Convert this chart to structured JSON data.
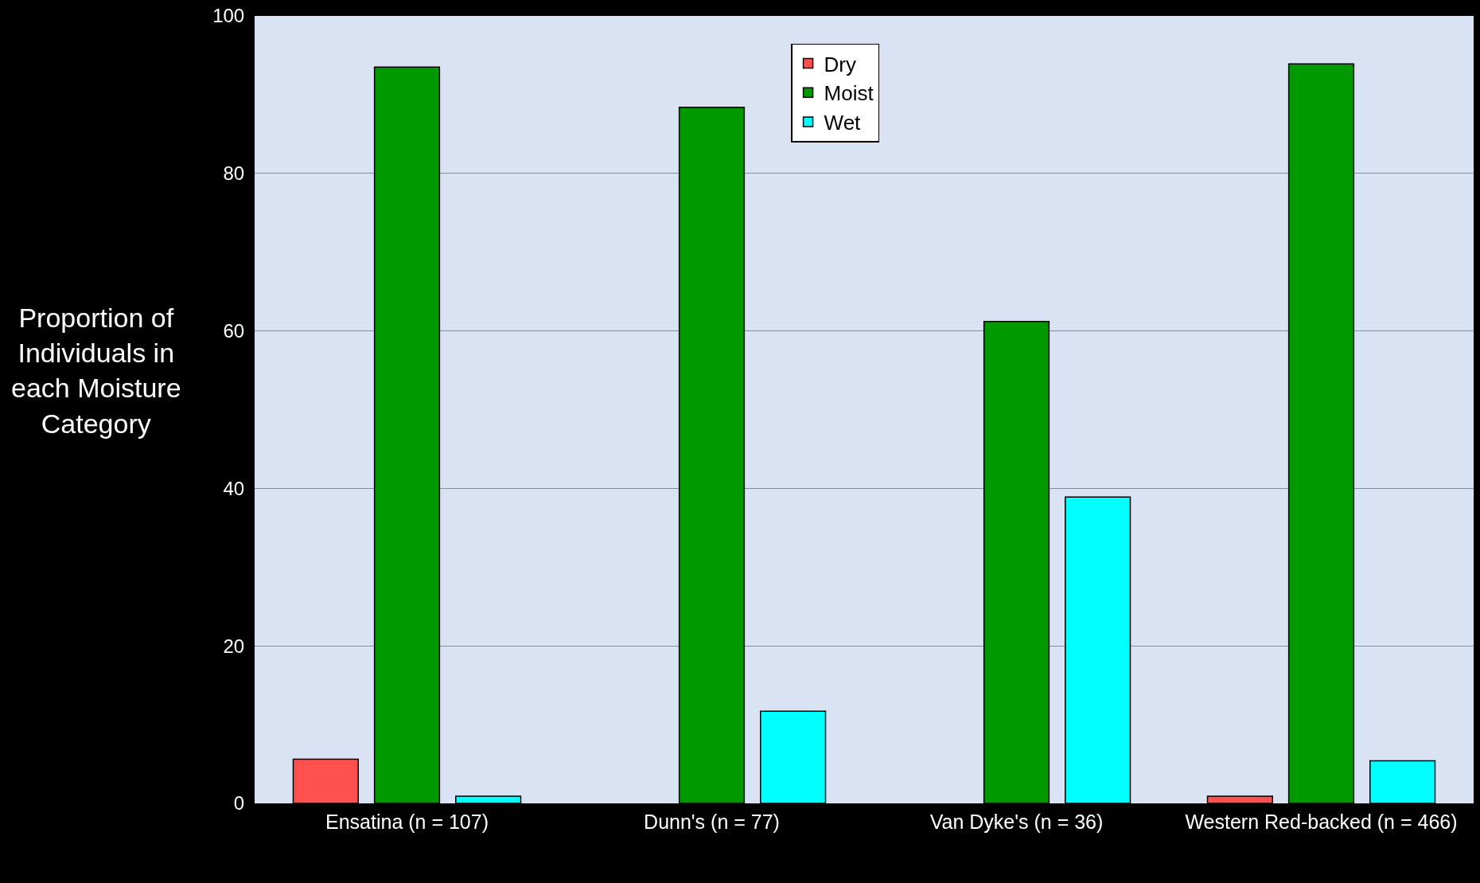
{
  "chart_data": {
    "type": "bar",
    "ylabel": "Proportion of Individuals in each Moisture Category",
    "categories": [
      "Ensatina (n = 107)",
      "Dunn's (n = 77)",
      "Van Dyke's (n = 36)",
      "Western Red-backed (n = 466)"
    ],
    "series": [
      {
        "name": "Dry",
        "color": "#ff5050",
        "values": [
          5.6,
          null,
          null,
          0.9
        ]
      },
      {
        "name": "Moist",
        "color": "#009900",
        "values": [
          93.5,
          88.4,
          61.2,
          93.9
        ]
      },
      {
        "name": "Wet",
        "color": "#00ffff",
        "values": [
          0.9,
          11.7,
          38.9,
          5.4
        ]
      }
    ],
    "ylim": [
      0,
      100
    ],
    "yticks": [
      0,
      20,
      40,
      60,
      80,
      100
    ],
    "grid": "y",
    "legend": "top"
  }
}
